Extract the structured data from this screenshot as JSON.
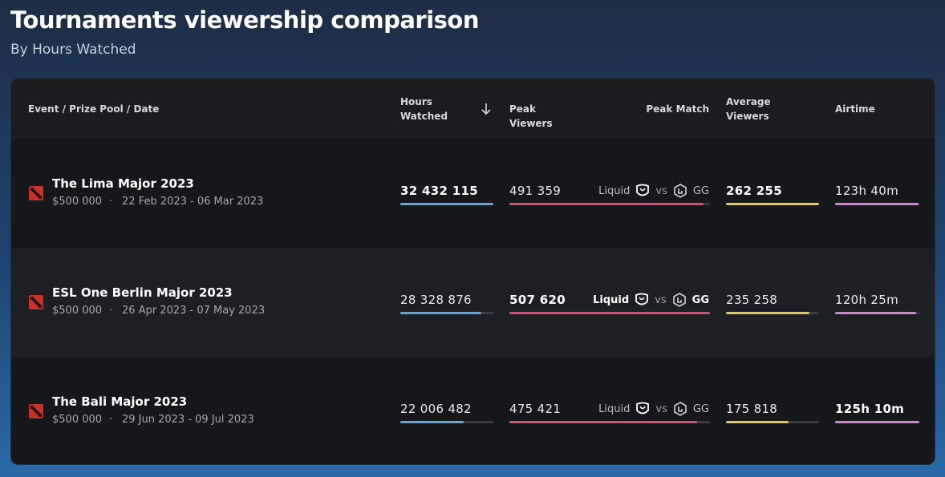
{
  "header": {
    "title": "Tournaments viewership comparison",
    "subtitle": "By Hours Watched"
  },
  "table": {
    "columns": [
      "Event / Prize Pool / Date",
      "Hours Watched",
      "Peak Viewers",
      "Peak Match",
      "Average Viewers",
      "Airtime"
    ],
    "rows": [
      {
        "event": "The Lima Major 2023",
        "prize_pool": "$500 000",
        "separator": "·",
        "dates": "22 Feb 2023 - 06 Mar 2023",
        "hours_watched": {
          "value": 32432115,
          "label": "32 432 115"
        },
        "peak_viewers": {
          "value": 491359,
          "label": "491 359"
        },
        "peak_match": {
          "team_1": "Liquid",
          "vs": "vs",
          "team_2": "GG"
        },
        "average_viewers": {
          "value": 262255,
          "label": "262 255"
        },
        "airtime": {
          "value": 7420,
          "label": "123h 40m"
        }
      },
      {
        "event": "ESL One Berlin Major 2023",
        "prize_pool": "$500 000",
        "separator": "·",
        "dates": "26 Apr 2023 - 07 May 2023",
        "hours_watched": {
          "value": 28328876,
          "label": "28 328 876"
        },
        "peak_viewers": {
          "value": 507620,
          "label": "507 620"
        },
        "peak_match": {
          "team_1": "Liquid",
          "vs": "vs",
          "team_2": "GG"
        },
        "average_viewers": {
          "value": 235258,
          "label": "235 258"
        },
        "airtime": {
          "value": 7225,
          "label": "120h 25m"
        }
      },
      {
        "event": "The Bali Major 2023",
        "prize_pool": "$500 000",
        "separator": "·",
        "dates": "29 Jun 2023 - 09 Jul 2023",
        "hours_watched": {
          "value": 22006482,
          "label": "22 006 482"
        },
        "peak_viewers": {
          "value": 475421,
          "label": "475 421"
        },
        "peak_match": {
          "team_1": "Liquid",
          "vs": "vs",
          "team_2": "GG"
        },
        "average_viewers": {
          "value": 175818,
          "label": "175 818"
        },
        "airtime": {
          "value": 7510,
          "label": "125h 10m"
        }
      }
    ]
  }
}
